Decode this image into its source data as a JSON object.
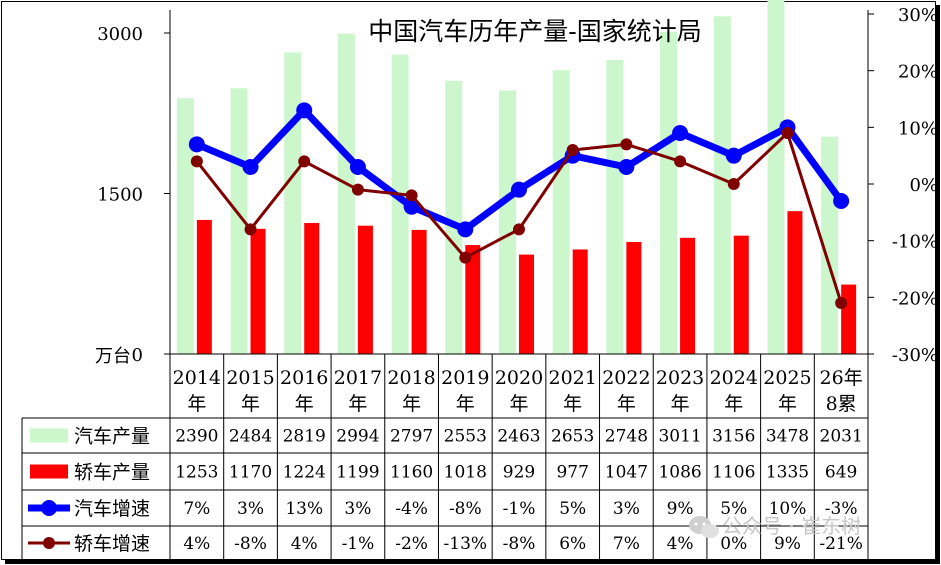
{
  "chart_data": {
    "type": "bar",
    "title": "中国汽车历年产量-国家统计局",
    "unit_label": "万台",
    "categories": [
      [
        "2014",
        "年"
      ],
      [
        "2015",
        "年"
      ],
      [
        "2016",
        "年"
      ],
      [
        "2017",
        "年"
      ],
      [
        "2018",
        "年"
      ],
      [
        "2019",
        "年"
      ],
      [
        "2020",
        "年"
      ],
      [
        "2021",
        "年"
      ],
      [
        "2022",
        "年"
      ],
      [
        "2023",
        "年"
      ],
      [
        "2024",
        "年"
      ],
      [
        "2025",
        "年"
      ],
      [
        "26年",
        "8累"
      ]
    ],
    "left_axis": {
      "ylim": [
        0,
        3000
      ],
      "ticks": [
        "0",
        "1500",
        "3000"
      ]
    },
    "right_axis": {
      "ylim": [
        -30,
        30
      ],
      "ticks": [
        "30%",
        "20%",
        "10%",
        "0%",
        "-10%",
        "-20%",
        "-30%"
      ]
    },
    "series": [
      {
        "name": "汽车产量",
        "kind": "bar",
        "axis": "left",
        "color": "#ccf7cc",
        "values": [
          2390,
          2484,
          2819,
          2994,
          2797,
          2553,
          2463,
          2653,
          2748,
          3011,
          3156,
          3478,
          2031
        ],
        "labels": [
          "2390",
          "2484",
          "2819",
          "2994",
          "2797",
          "2553",
          "2463",
          "2653",
          "2748",
          "3011",
          "3156",
          "3478",
          "2031"
        ]
      },
      {
        "name": "轿车产量",
        "kind": "bar",
        "axis": "left",
        "color": "#ff0000",
        "values": [
          1253,
          1170,
          1224,
          1199,
          1160,
          1018,
          929,
          977,
          1047,
          1086,
          1106,
          1335,
          649
        ],
        "labels": [
          "1253",
          "1170",
          "1224",
          "1199",
          "1160",
          "1018",
          "929",
          "977",
          "1047",
          "1086",
          "1106",
          "1335",
          "649"
        ]
      },
      {
        "name": "汽车增速",
        "kind": "line",
        "axis": "right",
        "color": "#0000ff",
        "values": [
          7,
          3,
          13,
          3,
          -4,
          -8,
          -1,
          5,
          3,
          9,
          5,
          10,
          -3
        ],
        "labels": [
          "7%",
          "3%",
          "13%",
          "3%",
          "-4%",
          "-8%",
          "-1%",
          "5%",
          "3%",
          "9%",
          "5%",
          "10%",
          "-3%"
        ]
      },
      {
        "name": "轿车增速",
        "kind": "line",
        "axis": "right",
        "color": "#800000",
        "values": [
          4,
          -8,
          4,
          -1,
          -2,
          -13,
          -8,
          6,
          7,
          4,
          0,
          9,
          -21
        ],
        "labels": [
          "4%",
          "-8%",
          "4%",
          "-1%",
          "-2%",
          "-13%",
          "-8%",
          "6%",
          "7%",
          "4%",
          "0%",
          "9%",
          "-21%"
        ]
      }
    ],
    "grid": false,
    "legend": "data table"
  },
  "watermark": "公众号 · 崔东树"
}
